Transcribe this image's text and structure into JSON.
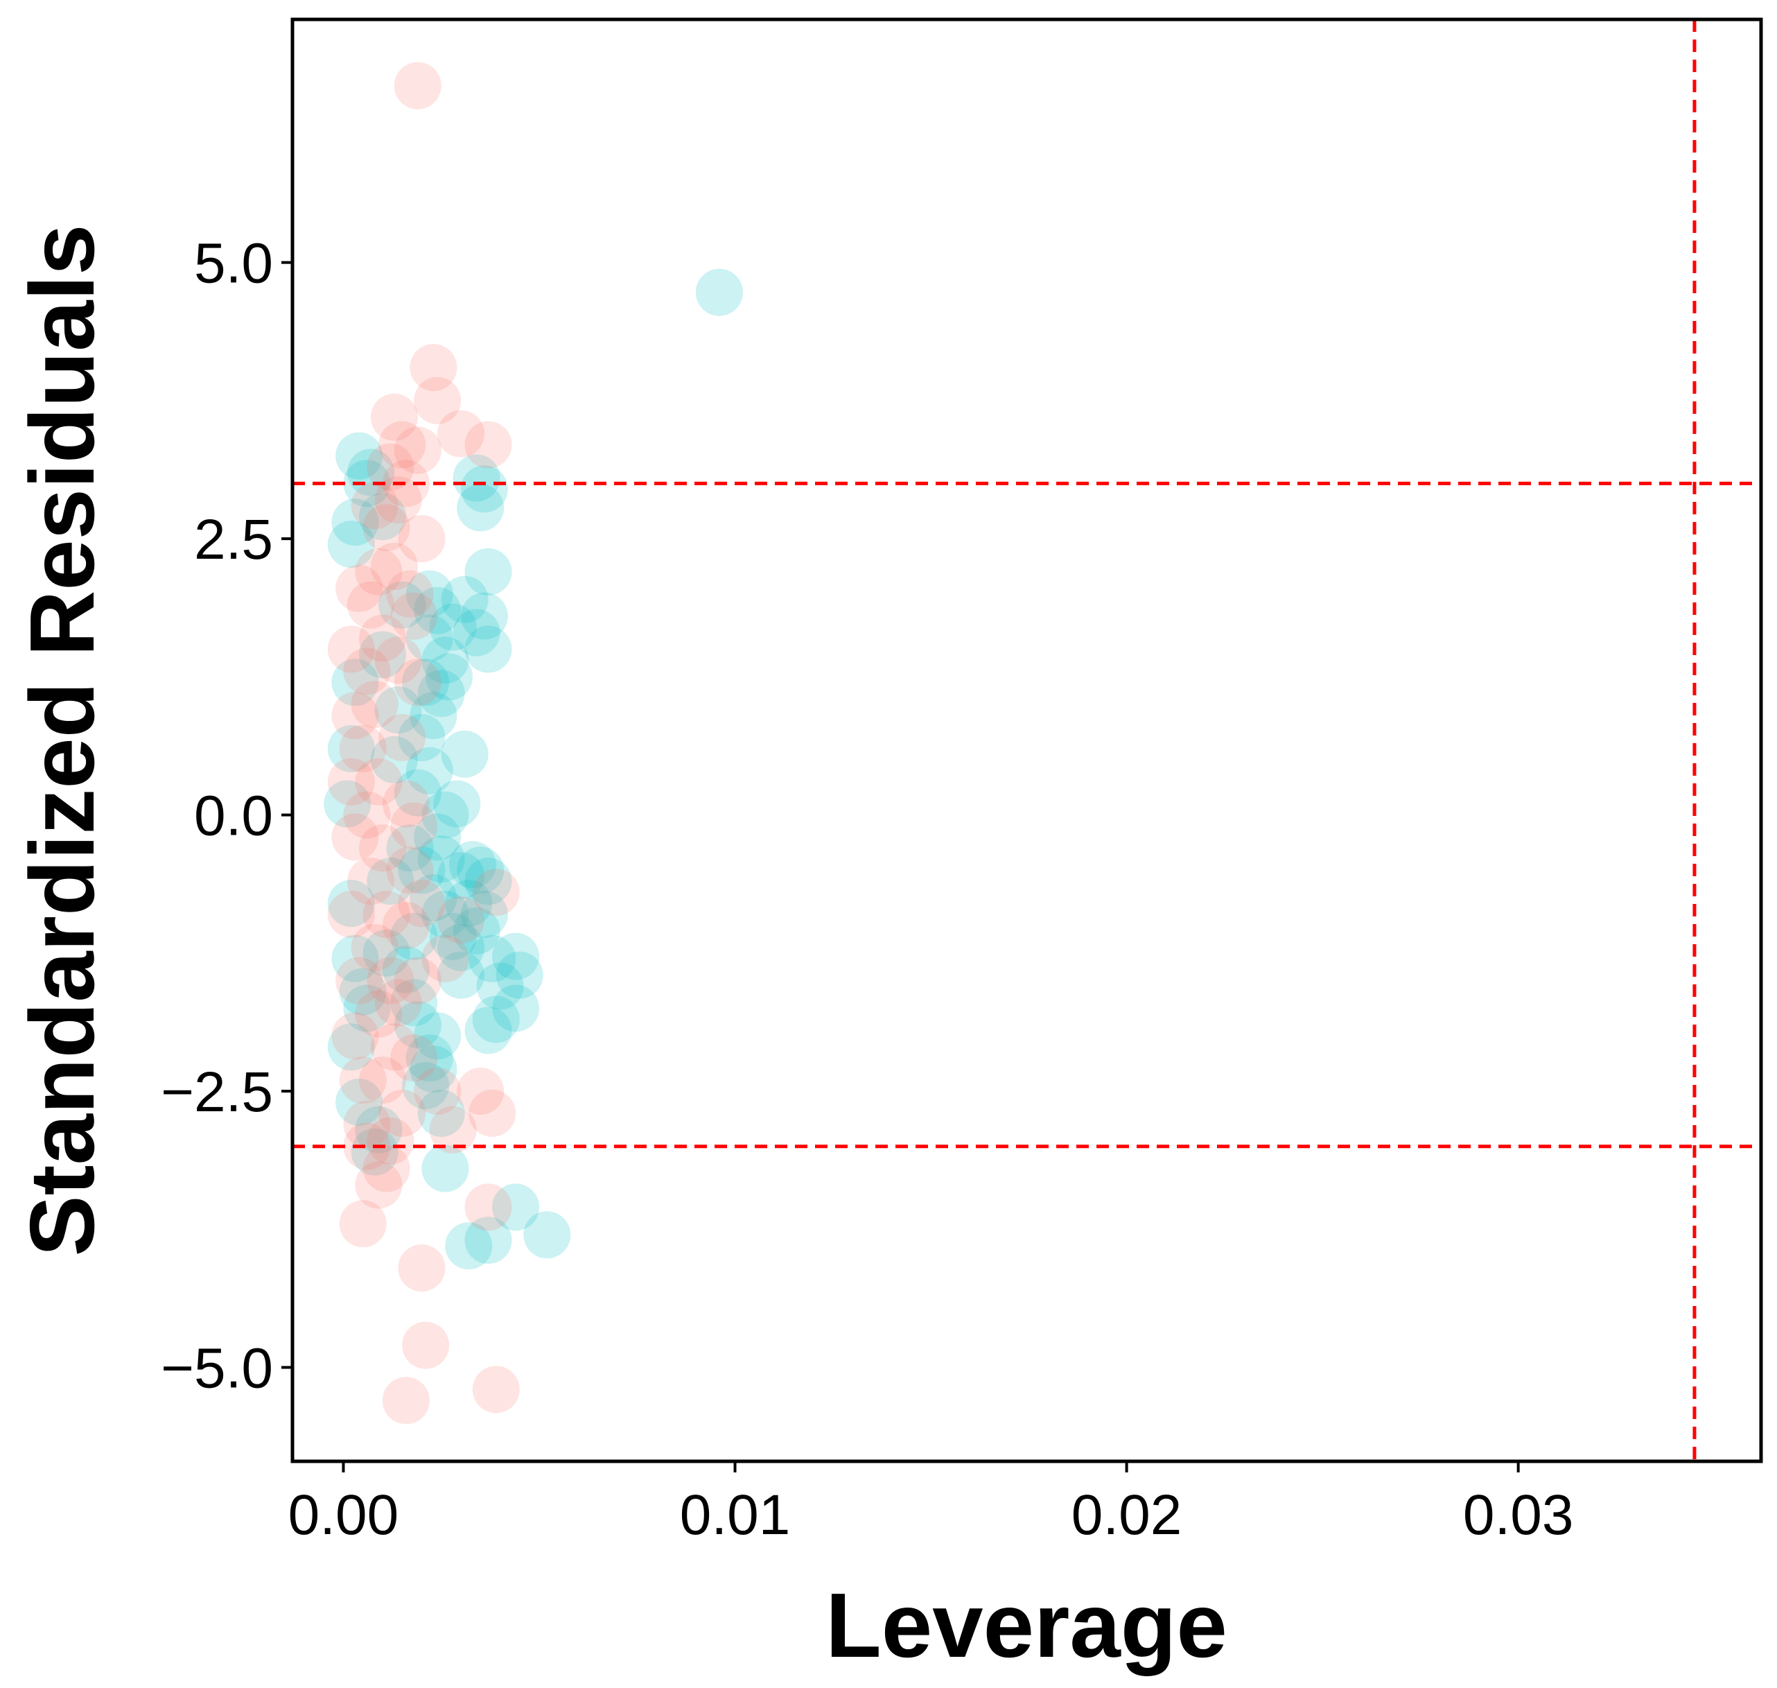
{
  "chart_data": {
    "type": "scatter",
    "title": "",
    "xlabel": "Leverage",
    "ylabel": "Standardized Residuals",
    "xlim": [
      -0.0013,
      0.0362
    ],
    "ylim": [
      -5.85,
      7.2
    ],
    "xticks": [
      {
        "value": 0.0,
        "label": "0.00"
      },
      {
        "value": 0.01,
        "label": "0.01"
      },
      {
        "value": 0.02,
        "label": "0.02"
      },
      {
        "value": 0.03,
        "label": "0.03"
      }
    ],
    "yticks": [
      {
        "value": 5.0,
        "label": "5.0"
      },
      {
        "value": 2.5,
        "label": "2.5"
      },
      {
        "value": 0.0,
        "label": "0.0"
      },
      {
        "value": -2.5,
        "label": "−2.5"
      },
      {
        "value": -5.0,
        "label": "−5.0"
      }
    ],
    "reference_lines": {
      "horizontal": [
        3.0,
        -3.0
      ],
      "vertical": [
        0.0345
      ],
      "color": "#ff0000",
      "style": "dashed"
    },
    "grid": false,
    "series": [
      {
        "name": "teal",
        "color": "#00bfc4",
        "opacity": 0.2,
        "points": [
          [
            0.0096,
            4.73
          ],
          [
            0.0034,
            3.05
          ],
          [
            0.0036,
            2.95
          ],
          [
            0.0037,
            2.2
          ],
          [
            0.0036,
            1.8
          ],
          [
            0.0037,
            1.5
          ],
          [
            0.0034,
            1.65
          ],
          [
            0.0035,
            2.78
          ],
          [
            0.0031,
            1.95
          ],
          [
            0.0028,
            1.7
          ],
          [
            0.0027,
            1.25
          ],
          [
            0.0026,
            1.4
          ],
          [
            0.0025,
            1.1
          ],
          [
            0.0031,
            0.55
          ],
          [
            0.0029,
            0.1
          ],
          [
            0.0026,
            0.0
          ],
          [
            0.0024,
            -0.2
          ],
          [
            0.0025,
            -0.4
          ],
          [
            0.0033,
            -0.45
          ],
          [
            0.0035,
            -0.5
          ],
          [
            0.0037,
            -0.6
          ],
          [
            0.0036,
            -0.9
          ],
          [
            0.0034,
            -1.05
          ],
          [
            0.003,
            -1.2
          ],
          [
            0.0038,
            -1.3
          ],
          [
            0.0044,
            -1.28
          ],
          [
            0.0045,
            -1.45
          ],
          [
            0.004,
            -1.55
          ],
          [
            0.0044,
            -1.75
          ],
          [
            0.0039,
            -1.85
          ],
          [
            0.0037,
            -1.95
          ],
          [
            0.003,
            -1.45
          ],
          [
            0.0024,
            -2.0
          ],
          [
            0.0023,
            -2.3
          ],
          [
            0.0021,
            -2.45
          ],
          [
            0.0025,
            -2.7
          ],
          [
            0.0026,
            -3.2
          ],
          [
            0.0044,
            -3.55
          ],
          [
            0.0052,
            -3.8
          ],
          [
            0.0037,
            -3.85
          ],
          [
            0.0032,
            -3.9
          ],
          [
            0.0022,
            -2.2
          ],
          [
            0.0018,
            -1.7
          ],
          [
            0.0006,
            -1.75
          ],
          [
            0.0005,
            -1.6
          ],
          [
            0.0004,
            -2.6
          ],
          [
            0.0008,
            -3.05
          ],
          [
            0.0009,
            -2.85
          ],
          [
            0.0002,
            2.45
          ],
          [
            0.0004,
            3.25
          ],
          [
            0.0006,
            3.0
          ],
          [
            0.0007,
            3.1
          ],
          [
            0.001,
            2.7
          ],
          [
            0.0003,
            2.65
          ],
          [
            0.0022,
            2.0
          ],
          [
            0.0024,
            1.85
          ],
          [
            0.0022,
            1.6
          ],
          [
            0.0023,
            0.9
          ],
          [
            0.002,
            0.7
          ],
          [
            0.0022,
            0.4
          ],
          [
            0.002,
            -0.5
          ],
          [
            0.0023,
            -0.75
          ],
          [
            0.0026,
            -0.9
          ],
          [
            0.0028,
            -1.1
          ],
          [
            0.0032,
            -0.8
          ],
          [
            0.003,
            -0.55
          ],
          [
            0.0021,
            1.2
          ],
          [
            0.0019,
            0.2
          ],
          [
            0.0017,
            -0.3
          ],
          [
            0.0018,
            -1.1
          ],
          [
            0.0016,
            -1.4
          ],
          [
            0.0019,
            -1.9
          ],
          [
            0.0015,
            1.9
          ],
          [
            0.0014,
            0.95
          ],
          [
            0.0013,
            0.5
          ],
          [
            0.0012,
            -0.6
          ],
          [
            0.0011,
            -1.25
          ],
          [
            0.001,
            1.45
          ],
          [
            0.0003,
            1.2
          ],
          [
            0.0002,
            0.6
          ],
          [
            0.0001,
            0.1
          ],
          [
            0.0002,
            -0.8
          ],
          [
            0.0003,
            -1.3
          ],
          [
            0.0002,
            -2.1
          ]
        ]
      },
      {
        "name": "salmon",
        "color": "#f8766d",
        "opacity": 0.2,
        "points": [
          [
            0.0019,
            6.6
          ],
          [
            0.0023,
            4.05
          ],
          [
            0.0024,
            3.75
          ],
          [
            0.0013,
            3.6
          ],
          [
            0.0015,
            3.35
          ],
          [
            0.0019,
            3.3
          ],
          [
            0.003,
            3.45
          ],
          [
            0.0037,
            3.35
          ],
          [
            0.0012,
            3.15
          ],
          [
            0.0016,
            3.0
          ],
          [
            0.0014,
            2.85
          ],
          [
            0.002,
            2.5
          ],
          [
            0.0009,
            2.2
          ],
          [
            0.0007,
            1.9
          ],
          [
            0.001,
            1.6
          ],
          [
            0.0006,
            1.3
          ],
          [
            0.0008,
            1.0
          ],
          [
            0.0005,
            0.6
          ],
          [
            0.0009,
            0.3
          ],
          [
            0.0006,
            0.0
          ],
          [
            0.001,
            -0.3
          ],
          [
            0.0007,
            -0.6
          ],
          [
            0.0011,
            -0.9
          ],
          [
            0.0008,
            -1.2
          ],
          [
            0.0012,
            -1.5
          ],
          [
            0.0009,
            -1.8
          ],
          [
            0.0013,
            -2.1
          ],
          [
            0.001,
            -2.4
          ],
          [
            0.0015,
            -2.7
          ],
          [
            0.0012,
            -2.95
          ],
          [
            0.0011,
            -3.2
          ],
          [
            0.0009,
            -3.35
          ],
          [
            0.0005,
            -3.7
          ],
          [
            0.0037,
            -3.55
          ],
          [
            0.0038,
            -2.7
          ],
          [
            0.0035,
            -2.5
          ],
          [
            0.002,
            -4.1
          ],
          [
            0.0021,
            -4.8
          ],
          [
            0.0016,
            -5.3
          ],
          [
            0.0039,
            -5.2
          ],
          [
            0.0039,
            -0.7
          ],
          [
            0.003,
            -0.95
          ],
          [
            0.0026,
            -1.3
          ],
          [
            0.0028,
            -2.85
          ],
          [
            0.0024,
            -2.5
          ],
          [
            0.0018,
            -2.2
          ],
          [
            0.0016,
            -1.0
          ],
          [
            0.0014,
            1.4
          ],
          [
            0.0018,
            1.8
          ],
          [
            0.0013,
            2.25
          ],
          [
            0.0011,
            2.6
          ],
          [
            0.0004,
            2.05
          ],
          [
            0.0002,
            1.5
          ],
          [
            0.0003,
            0.9
          ],
          [
            0.0002,
            0.3
          ],
          [
            0.0003,
            -0.2
          ],
          [
            0.0002,
            -0.9
          ],
          [
            0.0004,
            -1.5
          ],
          [
            0.0003,
            -2.0
          ],
          [
            0.0005,
            -2.4
          ],
          [
            0.0006,
            -2.8
          ],
          [
            0.0015,
            0.7
          ],
          [
            0.0016,
            0.1
          ],
          [
            0.0017,
            -0.5
          ],
          [
            0.0014,
            -1.7
          ],
          [
            0.0017,
            2.0
          ],
          [
            0.0019,
            1.2
          ],
          [
            0.0018,
            -0.1
          ],
          [
            0.002,
            -0.8
          ],
          [
            0.0019,
            -1.5
          ],
          [
            0.0008,
            2.8
          ],
          [
            0.0006,
            -3.0
          ]
        ]
      }
    ]
  }
}
